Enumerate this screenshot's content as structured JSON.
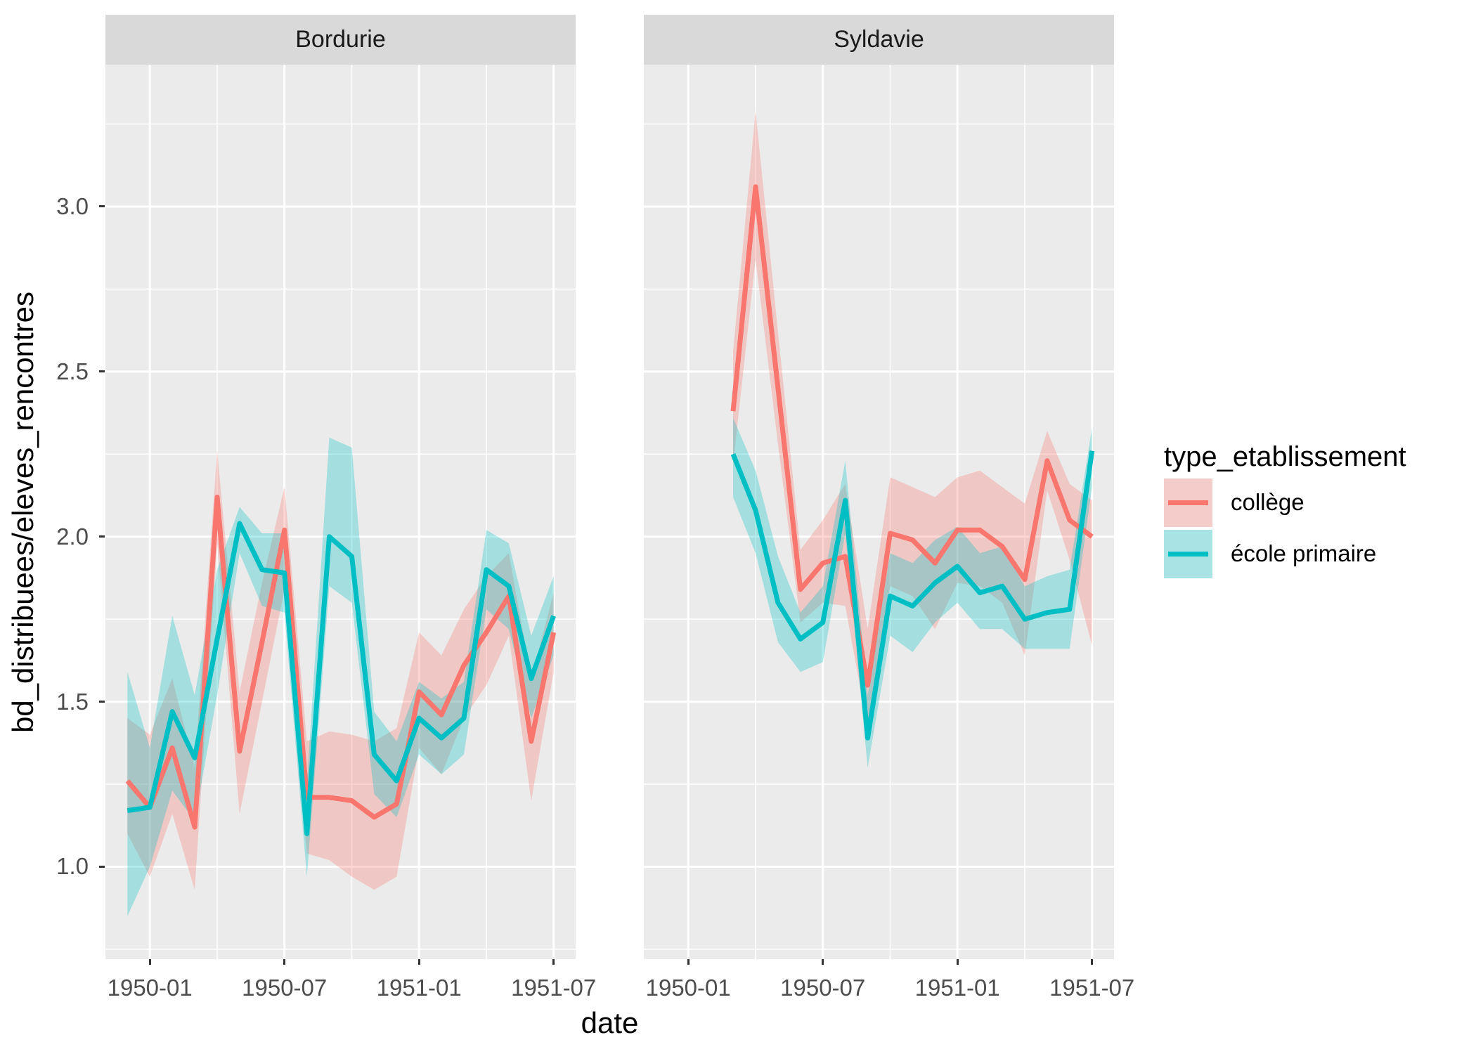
{
  "x_axis": {
    "title": "date"
  },
  "y_axis": {
    "title": "bd_distribuees/eleves_rencontres"
  },
  "legend": {
    "title": "type_etablissement",
    "items": [
      {
        "label": "collège",
        "color": "#F8766D"
      },
      {
        "label": "école primaire",
        "color": "#00BFC4"
      }
    ]
  },
  "theme": {
    "panel_background": "#EBEBEB",
    "strip_background": "#D9D9D9",
    "grid_color": "#FFFFFF",
    "tick_color": "#333333",
    "tick_text_color": "#4D4D4D",
    "ribbon_alpha": 0.3
  },
  "chart_data": {
    "type": "line",
    "title": "",
    "xlabel": "date",
    "ylabel": "bd_distribuees/eleves_rencontres",
    "legend_position": "right",
    "grid": true,
    "ylim": [
      0.72,
      3.43
    ],
    "x_range": [
      "1949-12",
      "1951-07"
    ],
    "x_breaks": [
      "1950-01",
      "1950-07",
      "1951-01",
      "1951-07"
    ],
    "x_minor_breaks": [
      "1950-04",
      "1950-10",
      "1951-04"
    ],
    "y_breaks": [
      1.0,
      1.5,
      2.0,
      2.5,
      3.0
    ],
    "y_break_labels": [
      "1.0",
      "1.5",
      "2.0",
      "2.5",
      "3.0"
    ],
    "y_minor_breaks": [
      0.75,
      1.25,
      1.75,
      2.25,
      2.75,
      3.25
    ],
    "facets": [
      {
        "title": "Bordurie",
        "series": [
          {
            "name": "collège",
            "color": "#F8766D",
            "x": [
              "1949-12",
              "1950-01",
              "1950-02",
              "1950-03",
              "1950-04",
              "1950-05",
              "1950-06",
              "1950-07",
              "1950-08",
              "1950-09",
              "1950-10",
              "1950-11",
              "1950-12",
              "1951-01",
              "1951-02",
              "1951-03",
              "1951-04",
              "1951-05",
              "1951-06",
              "1951-07"
            ],
            "y": [
              1.26,
              1.18,
              1.36,
              1.12,
              2.12,
              1.35,
              1.68,
              2.02,
              1.21,
              1.21,
              1.2,
              1.15,
              1.19,
              1.53,
              1.46,
              1.61,
              1.71,
              1.82,
              1.38,
              1.71
            ],
            "ymin": [
              1.1,
              0.97,
              1.16,
              0.93,
              1.98,
              1.16,
              1.5,
              1.84,
              1.04,
              1.02,
              0.97,
              0.93,
              0.97,
              1.36,
              1.28,
              1.45,
              1.55,
              1.7,
              1.2,
              1.59
            ],
            "ymax": [
              1.45,
              1.4,
              1.57,
              1.3,
              2.26,
              1.53,
              1.86,
              2.15,
              1.38,
              1.41,
              1.4,
              1.38,
              1.42,
              1.71,
              1.64,
              1.78,
              1.88,
              1.95,
              1.57,
              1.83
            ]
          },
          {
            "name": "école primaire",
            "color": "#00BFC4",
            "x": [
              "1949-12",
              "1950-01",
              "1950-02",
              "1950-03",
              "1950-04",
              "1950-05",
              "1950-06",
              "1950-07",
              "1950-08",
              "1950-09",
              "1950-10",
              "1950-11",
              "1950-12",
              "1951-01",
              "1951-02",
              "1951-03",
              "1951-04",
              "1951-05",
              "1951-06",
              "1951-07"
            ],
            "y": [
              1.17,
              1.18,
              1.47,
              1.33,
              1.69,
              2.04,
              1.9,
              1.89,
              1.1,
              2.0,
              1.94,
              1.34,
              1.26,
              1.45,
              1.39,
              1.45,
              1.9,
              1.85,
              1.57,
              1.76
            ],
            "ymin": [
              0.85,
              1.0,
              1.23,
              1.14,
              1.52,
              1.95,
              1.79,
              1.77,
              0.97,
              1.85,
              1.8,
              1.22,
              1.15,
              1.34,
              1.28,
              1.34,
              1.78,
              1.72,
              1.45,
              1.64
            ],
            "ymax": [
              1.59,
              1.36,
              1.76,
              1.52,
              1.9,
              2.09,
              2.01,
              2.01,
              1.25,
              2.3,
              2.27,
              1.47,
              1.38,
              1.56,
              1.51,
              1.56,
              2.02,
              1.98,
              1.7,
              1.88
            ]
          }
        ]
      },
      {
        "title": "Syldavie",
        "series": [
          {
            "name": "collège",
            "color": "#F8766D",
            "x": [
              "1950-03",
              "1950-04",
              "1950-05",
              "1950-06",
              "1950-07",
              "1950-08",
              "1950-09",
              "1950-10",
              "1950-11",
              "1950-12",
              "1951-01",
              "1951-02",
              "1951-03",
              "1951-04",
              "1951-05",
              "1951-06",
              "1951-07"
            ],
            "y": [
              2.38,
              3.06,
              2.45,
              1.84,
              1.92,
              1.94,
              1.55,
              2.01,
              1.99,
              1.92,
              2.02,
              2.02,
              1.97,
              1.87,
              2.23,
              2.05,
              2.0
            ],
            "ymin": [
              2.22,
              2.84,
              2.28,
              1.74,
              1.8,
              1.79,
              1.42,
              1.85,
              1.82,
              1.72,
              1.86,
              1.85,
              1.8,
              1.64,
              2.14,
              1.93,
              1.67
            ],
            "ymax": [
              2.56,
              3.29,
              2.62,
              1.96,
              2.05,
              2.16,
              1.72,
              2.18,
              2.15,
              2.12,
              2.18,
              2.2,
              2.15,
              2.1,
              2.32,
              2.16,
              2.11
            ]
          },
          {
            "name": "école primaire",
            "color": "#00BFC4",
            "x": [
              "1950-03",
              "1950-04",
              "1950-05",
              "1950-06",
              "1950-07",
              "1950-08",
              "1950-09",
              "1950-10",
              "1950-11",
              "1950-12",
              "1951-01",
              "1951-02",
              "1951-03",
              "1951-04",
              "1951-05",
              "1951-06",
              "1951-07"
            ],
            "y": [
              2.25,
              2.08,
              1.8,
              1.69,
              1.74,
              2.11,
              1.39,
              1.82,
              1.79,
              1.86,
              1.91,
              1.83,
              1.85,
              1.75,
              1.77,
              1.78,
              2.26
            ],
            "ymin": [
              2.12,
              1.95,
              1.68,
              1.59,
              1.62,
              2.01,
              1.3,
              1.7,
              1.65,
              1.74,
              1.8,
              1.72,
              1.72,
              1.66,
              1.66,
              1.66,
              2.15
            ],
            "ymax": [
              2.36,
              2.2,
              1.94,
              1.77,
              1.85,
              2.23,
              1.52,
              1.95,
              1.92,
              1.99,
              2.03,
              1.95,
              1.97,
              1.85,
              1.88,
              1.9,
              2.33
            ]
          }
        ]
      }
    ]
  }
}
